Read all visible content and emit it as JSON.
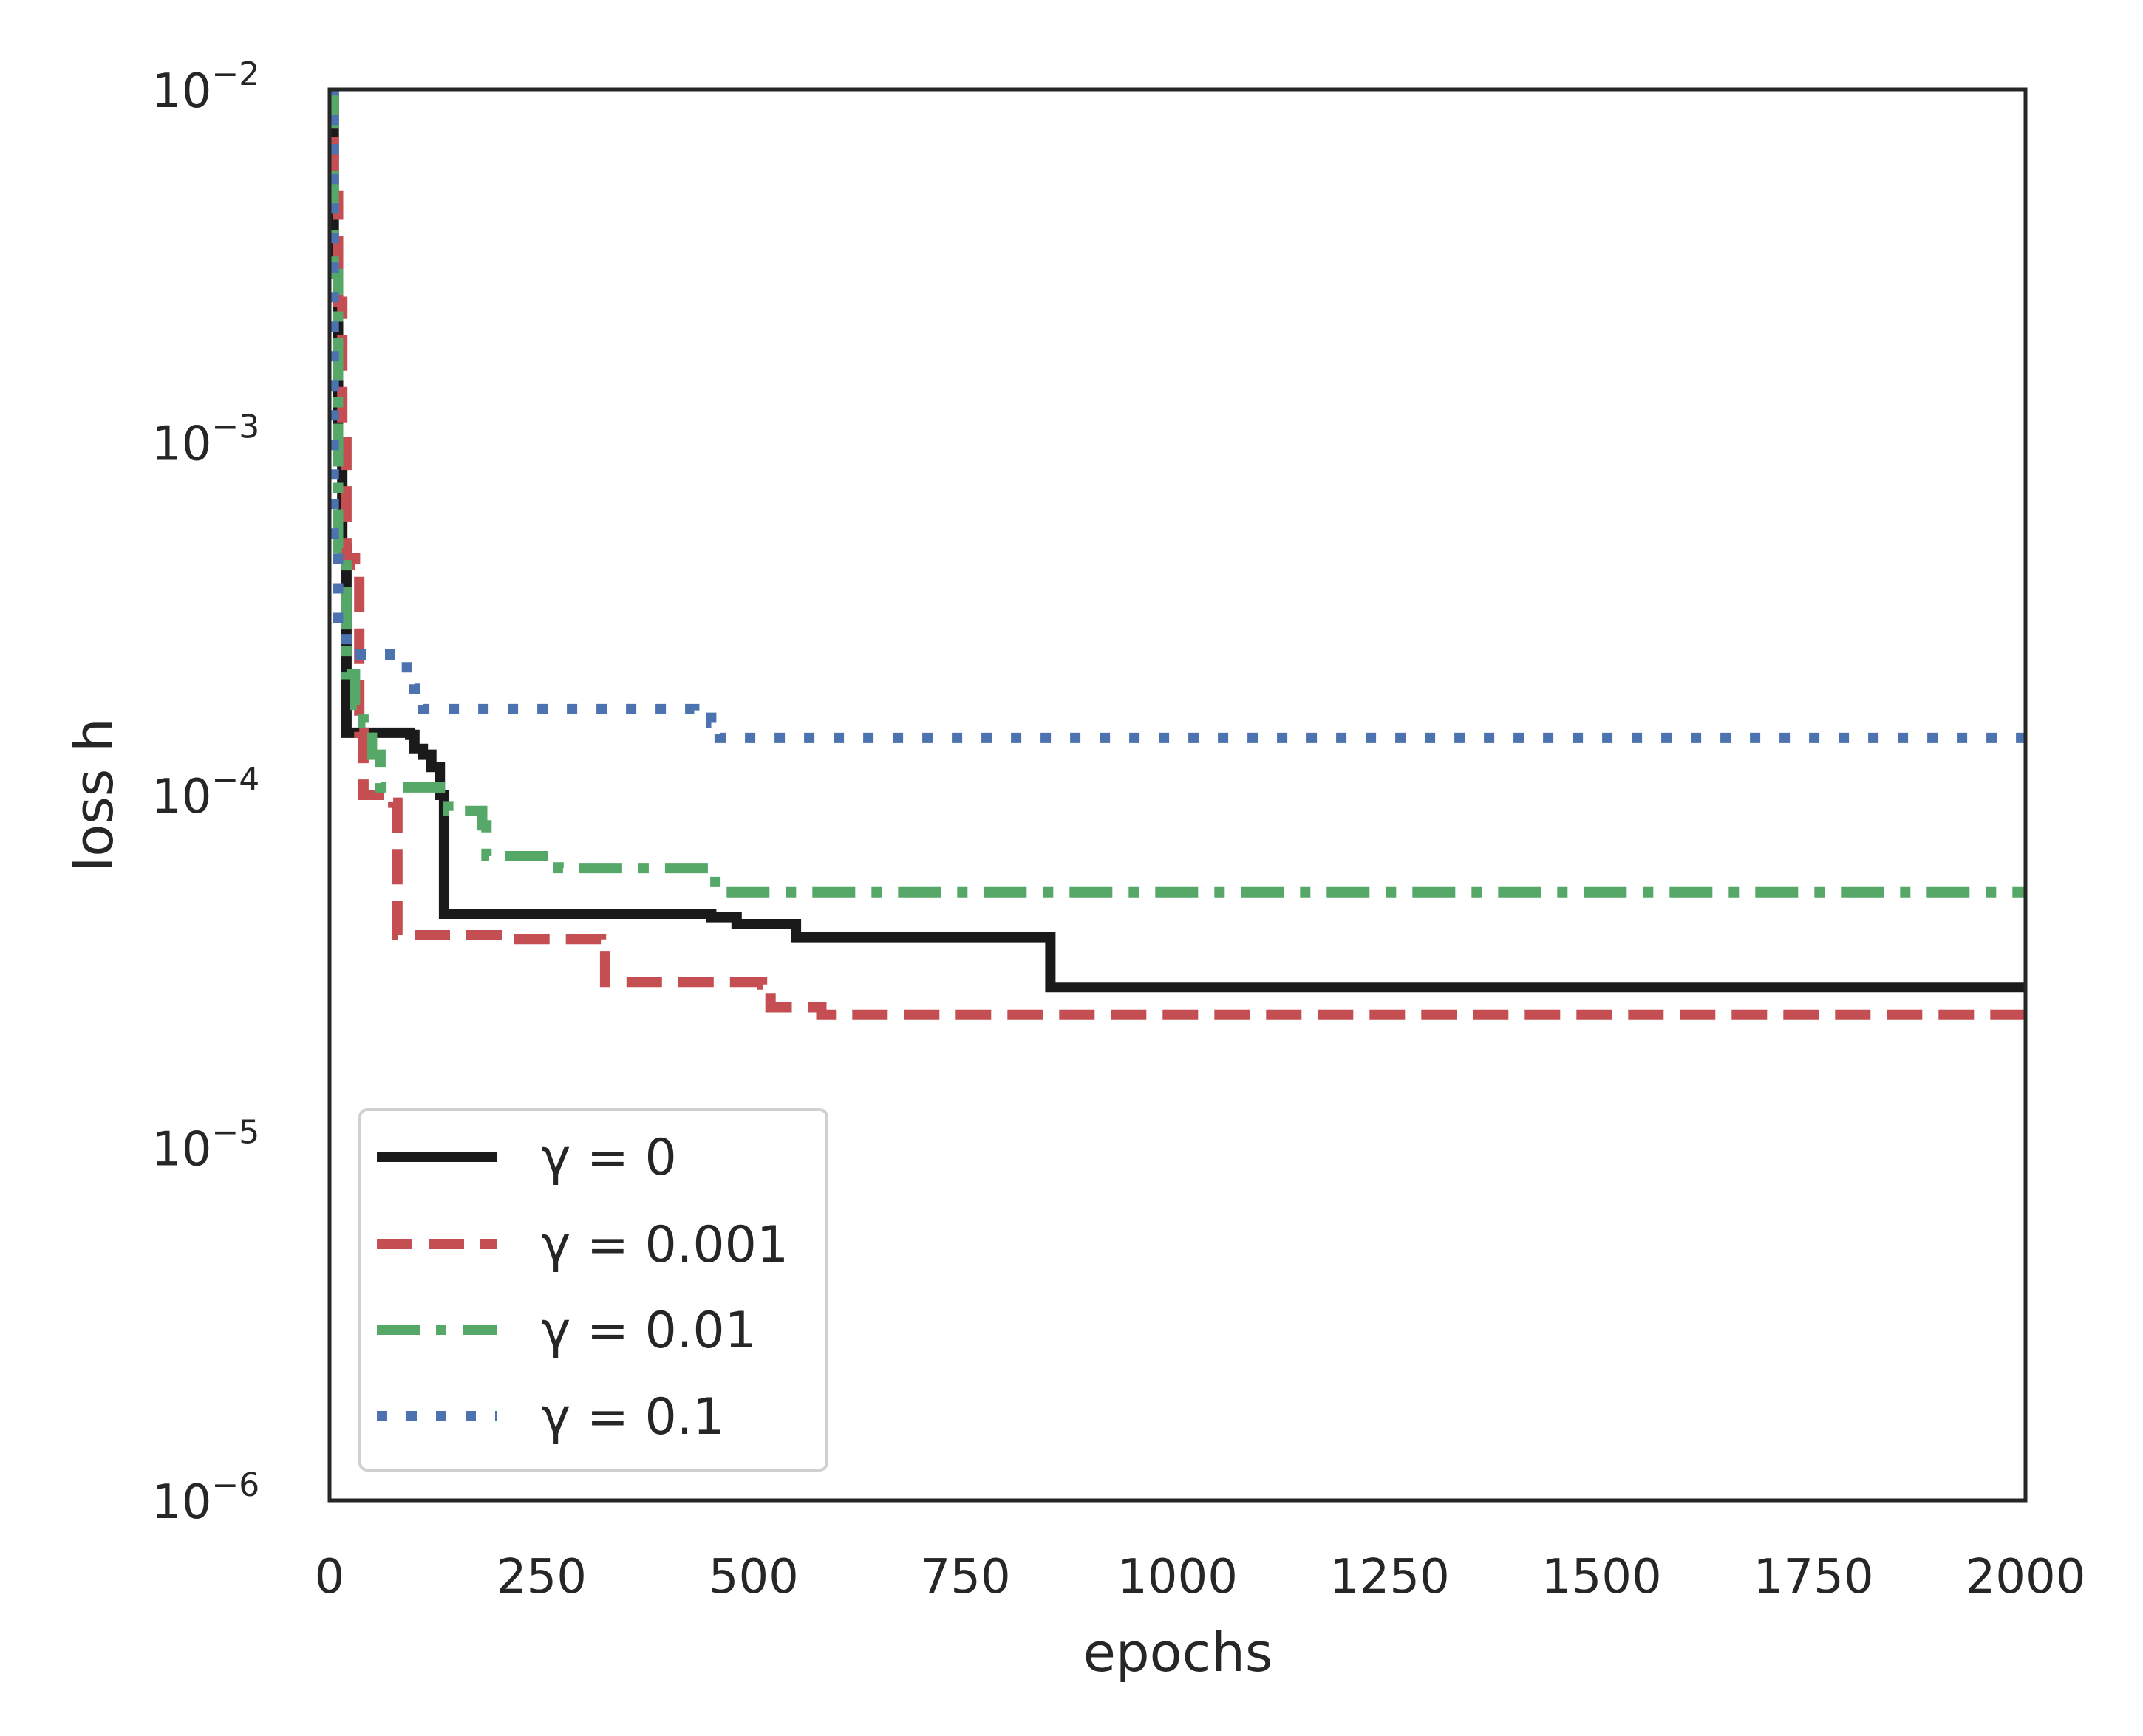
{
  "chart_data": {
    "type": "line",
    "title": "",
    "xlabel": "epochs",
    "ylabel": "loss h",
    "xlim": [
      0,
      2000
    ],
    "ylim": [
      1e-06,
      0.01
    ],
    "yscale": "log",
    "grid": false,
    "legend_position": "lower-left",
    "x_ticks": [
      {
        "value": 0,
        "label": "0"
      },
      {
        "value": 250,
        "label": "250"
      },
      {
        "value": 500,
        "label": "500"
      },
      {
        "value": 750,
        "label": "750"
      },
      {
        "value": 1000,
        "label": "1000"
      },
      {
        "value": 1250,
        "label": "1250"
      },
      {
        "value": 1500,
        "label": "1500"
      },
      {
        "value": 1750,
        "label": "1750"
      },
      {
        "value": 2000,
        "label": "2000"
      }
    ],
    "y_ticks": [
      {
        "value": 0.01,
        "base": "10",
        "exp": "−2"
      },
      {
        "value": 0.001,
        "base": "10",
        "exp": "−3"
      },
      {
        "value": 0.0001,
        "base": "10",
        "exp": "−4"
      },
      {
        "value": 1e-05,
        "base": "10",
        "exp": "−5"
      },
      {
        "value": 1e-06,
        "base": "10",
        "exp": "−6"
      }
    ],
    "series": [
      {
        "name": "γ = 0",
        "color": "#1a1a1a",
        "style": "solid",
        "step": true,
        "points": [
          [
            0,
            0.01
          ],
          [
            5,
            0.003
          ],
          [
            10,
            0.001
          ],
          [
            15,
            0.0005
          ],
          [
            20,
            0.00015
          ],
          [
            95,
            0.000148
          ],
          [
            100,
            0.000135
          ],
          [
            110,
            0.00013
          ],
          [
            120,
            0.00012
          ],
          [
            130,
            0.0001
          ],
          [
            135,
            4.6e-05
          ],
          [
            450,
            4.5e-05
          ],
          [
            480,
            4.3e-05
          ],
          [
            550,
            3.95e-05
          ],
          [
            850,
            2.85e-05
          ],
          [
            2000,
            2.85e-05
          ]
        ]
      },
      {
        "name": "γ = 0.001",
        "color": "#c44e52",
        "style": "dashed",
        "step": true,
        "points": [
          [
            0,
            0.01
          ],
          [
            5,
            0.005
          ],
          [
            10,
            0.0025
          ],
          [
            15,
            0.001
          ],
          [
            20,
            0.00047
          ],
          [
            30,
            0.00045
          ],
          [
            35,
            0.00015
          ],
          [
            40,
            0.0001
          ],
          [
            75,
            9.5e-05
          ],
          [
            80,
            4e-05
          ],
          [
            210,
            3.9e-05
          ],
          [
            320,
            3.7e-05
          ],
          [
            325,
            2.95e-05
          ],
          [
            510,
            2.9e-05
          ],
          [
            520,
            2.5e-05
          ],
          [
            580,
            2.38e-05
          ],
          [
            2000,
            2.38e-05
          ]
        ]
      },
      {
        "name": "γ = 0.01",
        "color": "#55a868",
        "style": "dashdot",
        "step": true,
        "points": [
          [
            0,
            0.01
          ],
          [
            5,
            0.003
          ],
          [
            10,
            0.0005
          ],
          [
            20,
            0.00022
          ],
          [
            30,
            0.00018
          ],
          [
            40,
            0.00016
          ],
          [
            50,
            0.00013
          ],
          [
            60,
            0.000105
          ],
          [
            130,
            0.0001
          ],
          [
            140,
            9e-05
          ],
          [
            180,
            8.2e-05
          ],
          [
            185,
            6.7e-05
          ],
          [
            260,
            6.6e-05
          ],
          [
            270,
            6.2e-05
          ],
          [
            450,
            6.1e-05
          ],
          [
            455,
            5.3e-05
          ],
          [
            2000,
            5.3e-05
          ]
        ]
      },
      {
        "name": "γ = 0.1",
        "color": "#4c72b0",
        "style": "dotted",
        "step": true,
        "points": [
          [
            0,
            0.01
          ],
          [
            5,
            0.0005
          ],
          [
            10,
            0.0003
          ],
          [
            20,
            0.00025
          ],
          [
            80,
            0.00023
          ],
          [
            100,
            0.0002
          ],
          [
            110,
            0.000175
          ],
          [
            430,
            0.000172
          ],
          [
            450,
            0.00016
          ],
          [
            460,
            0.000145
          ],
          [
            2000,
            0.000145
          ]
        ]
      }
    ]
  }
}
